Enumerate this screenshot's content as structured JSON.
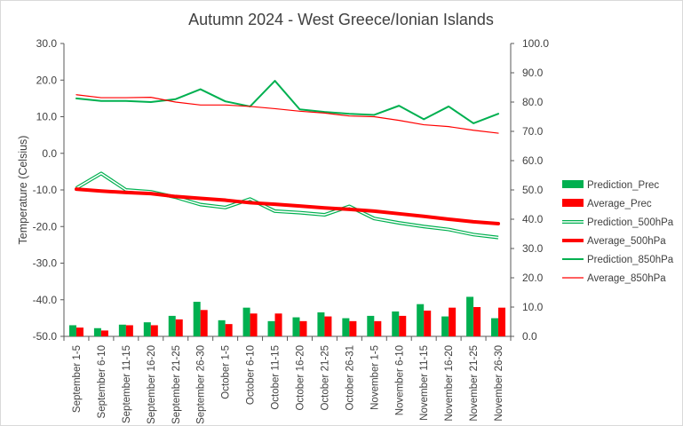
{
  "chart_data": {
    "type": "bar",
    "title": "Autumn 2024 - West Greece/Ionian Islands",
    "ylabel": "Temperature  (Celsius)",
    "ylabel_right": "",
    "ylim": [
      -50,
      30
    ],
    "yticks": [
      "30.0",
      "20.0",
      "10.0",
      "0.0",
      "-10.0",
      "-20.0",
      "-30.0",
      "-40.0",
      "-50.0"
    ],
    "y2lim": [
      0,
      100
    ],
    "y2ticks": [
      "100.0",
      "90.0",
      "80.0",
      "70.0",
      "60.0",
      "50.0",
      "40.0",
      "30.0",
      "20.0",
      "10.0",
      "0.0"
    ],
    "grid": false,
    "legend_position": "right",
    "categories": [
      "September 1-5",
      "September 6-10",
      "September 11-15",
      "September 16-20",
      "September 21-25",
      "September 26-30",
      "October 1-5",
      "October 6-10",
      "October 11-15",
      "October 16-20",
      "October 21-25",
      "October 26-31",
      "November 1-5",
      "November 6-10",
      "November 11-15",
      "November 16-20",
      "November 21-25",
      "November 26-30"
    ],
    "series": [
      {
        "name": "Prediction_Prec",
        "kind": "bar",
        "axis": "right",
        "color": "#00b050",
        "values": [
          3.8,
          2.8,
          4.0,
          4.8,
          7.0,
          11.8,
          5.5,
          9.8,
          5.2,
          6.5,
          8.2,
          6.2,
          7.0,
          8.5,
          11.0,
          6.8,
          13.5,
          6.2
        ]
      },
      {
        "name": "Average_Prec",
        "kind": "bar",
        "axis": "right",
        "color": "#ff0000",
        "values": [
          3.0,
          2.0,
          3.8,
          3.8,
          5.8,
          9.0,
          4.2,
          7.8,
          7.8,
          5.2,
          6.8,
          5.2,
          5.2,
          7.0,
          8.8,
          9.8,
          10.0,
          9.8
        ]
      },
      {
        "name": "Prediction_500hPa",
        "kind": "line",
        "style": "double",
        "axis": "left",
        "color": "#00b050",
        "values": [
          -9.5,
          -5.5,
          -10.0,
          -10.5,
          -12.0,
          -14.0,
          -14.8,
          -12.5,
          -15.8,
          -16.2,
          -16.8,
          -14.5,
          -17.8,
          -19.0,
          -20.0,
          -20.8,
          -22.2,
          -23.0
        ]
      },
      {
        "name": "Average_500hPa",
        "kind": "line",
        "style": "thick",
        "axis": "left",
        "color": "#ff0000",
        "values": [
          -9.8,
          -10.3,
          -10.7,
          -11.0,
          -11.8,
          -12.3,
          -12.8,
          -13.5,
          -13.9,
          -14.4,
          -14.9,
          -15.3,
          -15.8,
          -16.5,
          -17.2,
          -18.0,
          -18.7,
          -19.2
        ]
      },
      {
        "name": "Prediction_850hPa",
        "kind": "line",
        "style": "medium",
        "axis": "left",
        "color": "#00b050",
        "values": [
          15.0,
          14.3,
          14.3,
          14.0,
          14.8,
          17.5,
          14.2,
          12.8,
          19.8,
          12.0,
          11.3,
          10.8,
          10.5,
          13.0,
          9.3,
          12.8,
          8.2,
          10.8
        ]
      },
      {
        "name": "Average_850hPa",
        "kind": "line",
        "style": "thin",
        "axis": "left",
        "color": "#ff0000",
        "values": [
          16.0,
          15.2,
          15.2,
          15.3,
          14.0,
          13.2,
          13.2,
          12.8,
          12.2,
          11.5,
          11.0,
          10.2,
          10.0,
          9.0,
          7.8,
          7.3,
          6.3,
          5.5
        ]
      }
    ]
  }
}
